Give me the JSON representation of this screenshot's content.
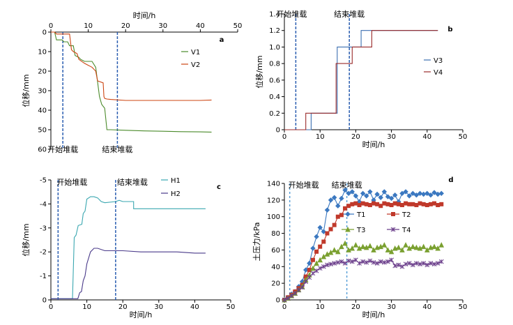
{
  "chart_data": [
    {
      "id": "a",
      "type": "line",
      "panel_label": "a",
      "xlabel": "时间/h",
      "ylabel": "位移/mm",
      "xlim": [
        0,
        50
      ],
      "ylim": [
        0,
        60
      ],
      "y_inverted": true,
      "x_axis_position": "top",
      "xticks": [
        0,
        10,
        20,
        30,
        40,
        50
      ],
      "yticks": [
        0,
        10,
        20,
        30,
        40,
        50,
        60
      ],
      "markers": [
        {
          "x": 3.2,
          "label": "开始堆载"
        },
        {
          "x": 17.8,
          "label": "结束堆载"
        }
      ],
      "series": [
        {
          "name": "V1",
          "color": "#4a8a2a",
          "x": [
            0,
            1,
            1.5,
            3,
            3.5,
            4.5,
            5,
            6,
            6.5,
            7.5,
            8,
            9,
            11,
            12,
            13,
            13.6,
            14,
            14.4,
            15,
            16,
            20,
            25,
            30,
            35,
            40,
            43
          ],
          "y": [
            0,
            0,
            4,
            4,
            5,
            5,
            7,
            7,
            12,
            13,
            14,
            15,
            15,
            18,
            33,
            37,
            38,
            39,
            50,
            50,
            50.3,
            50.6,
            50.8,
            51,
            51.1,
            51.2
          ]
        },
        {
          "name": "V2",
          "color": "#cc4411",
          "x": [
            0,
            1,
            1.5,
            5,
            5.5,
            6,
            7,
            7.5,
            9,
            11,
            12,
            12.5,
            14,
            14.2,
            14.4,
            15,
            16,
            20,
            25,
            30,
            35,
            40,
            43
          ],
          "y": [
            0,
            0,
            1,
            1,
            9,
            10,
            11,
            14,
            16,
            18,
            20,
            25,
            26,
            33,
            34,
            34.3,
            34.5,
            35,
            35,
            35,
            35,
            35,
            34.8
          ]
        }
      ]
    },
    {
      "id": "b",
      "type": "line",
      "panel_label": "b",
      "xlabel": "时间/h",
      "ylabel": "位移/mm",
      "xlim": [
        0,
        50
      ],
      "ylim": [
        0,
        1.4
      ],
      "xticks": [
        0,
        10,
        20,
        30,
        40,
        50
      ],
      "yticks": [
        0,
        0.2,
        0.4,
        0.6,
        0.8,
        1.0,
        1.2,
        1.4
      ],
      "ytick_labels": [
        "0",
        "0.2",
        "0.4",
        "0.6",
        "0.8",
        "1.0",
        "1.2",
        "1.4"
      ],
      "markers": [
        {
          "x": 3.2,
          "label": "开始堆载"
        },
        {
          "x": 18.2,
          "label": "结束堆载"
        }
      ],
      "series": [
        {
          "name": "V3",
          "color": "#3b6fb0",
          "x": [
            0,
            7.5,
            7.5,
            14.8,
            14.8,
            21.5,
            21.5,
            43
          ],
          "y": [
            0,
            0,
            0.2,
            0.2,
            1.0,
            1.0,
            1.2,
            1.2
          ]
        },
        {
          "name": "V4",
          "color": "#9a2a2a",
          "x": [
            0,
            6,
            6,
            14.5,
            14.5,
            19,
            19,
            24.5,
            24.5,
            43
          ],
          "y": [
            0,
            0,
            0.2,
            0.2,
            0.8,
            0.8,
            1.0,
            1.0,
            1.2,
            1.2
          ]
        }
      ]
    },
    {
      "id": "c",
      "type": "line",
      "panel_label": "c",
      "xlabel": "时间/h",
      "ylabel": "位移/mm",
      "xlim": [
        0,
        50
      ],
      "ylim": [
        0,
        -5
      ],
      "xticks": [
        0,
        10,
        20,
        30,
        40,
        50
      ],
      "yticks": [
        0,
        -1,
        -2,
        -3,
        -4,
        -5
      ],
      "markers": [
        {
          "x": 2,
          "label": "开始堆载"
        },
        {
          "x": 18,
          "label": "结束堆载"
        }
      ],
      "series": [
        {
          "name": "H1",
          "color": "#3aa7b0",
          "x": [
            0,
            6,
            6.5,
            7,
            7.6,
            8.6,
            9,
            9.5,
            10,
            11,
            12,
            13,
            14,
            15,
            18,
            19,
            20,
            21,
            22,
            23,
            23,
            25,
            30,
            35,
            40,
            43
          ],
          "y": [
            -0.05,
            -0.05,
            -2.6,
            -2.7,
            -3.1,
            -3.15,
            -3.6,
            -3.7,
            -4.2,
            -4.3,
            -4.3,
            -4.25,
            -4.1,
            -4.05,
            -4.1,
            -4.15,
            -4.1,
            -4.1,
            -4.1,
            -4.1,
            -3.8,
            -3.8,
            -3.8,
            -3.8,
            -3.8,
            -3.8
          ]
        },
        {
          "name": "H2",
          "color": "#4a3a8a",
          "x": [
            0,
            7.5,
            8,
            8.5,
            9,
            9.5,
            10,
            11,
            12,
            13,
            15,
            20,
            25,
            30,
            35,
            40,
            43
          ],
          "y": [
            -0.05,
            -0.05,
            -0.3,
            -0.35,
            -0.8,
            -1.0,
            -1.5,
            -2.0,
            -2.15,
            -2.15,
            -2.05,
            -2.05,
            -2.0,
            -2.0,
            -2.0,
            -1.95,
            -1.95
          ]
        }
      ]
    },
    {
      "id": "d",
      "type": "line",
      "panel_label": "d",
      "xlabel": "时间/h",
      "ylabel": "土压力/kPa",
      "xlim": [
        0,
        50
      ],
      "ylim": [
        0,
        140
      ],
      "xticks": [
        0,
        10,
        20,
        30,
        40,
        50
      ],
      "yticks": [
        0,
        20,
        40,
        60,
        80,
        100,
        120,
        140
      ],
      "markers": [
        {
          "x": 1.5,
          "label": "开始堆载"
        },
        {
          "x": 17.5,
          "label": "结束堆载"
        }
      ],
      "series": [
        {
          "name": "T1",
          "color": "#3b78c0",
          "marker": "diamond",
          "x": [
            0,
            1,
            2,
            3,
            4,
            5,
            6,
            7,
            8,
            9,
            10,
            11,
            12,
            13,
            14,
            15,
            16,
            17,
            18,
            19,
            20,
            21,
            22,
            23,
            24,
            25,
            26,
            27,
            28,
            29,
            30,
            31,
            32,
            33,
            34,
            35,
            36,
            37,
            38,
            39,
            40,
            41,
            42,
            43,
            44
          ],
          "y": [
            0,
            3,
            7,
            10,
            16,
            22,
            36,
            44,
            62,
            76,
            87,
            82,
            108,
            120,
            123,
            113,
            122,
            132,
            128,
            130,
            125,
            118,
            128,
            125,
            130,
            120,
            127,
            123,
            130,
            124,
            122,
            126,
            118,
            128,
            130,
            125,
            128,
            126,
            128,
            127,
            128,
            126,
            129,
            127,
            128
          ]
        },
        {
          "name": "T2",
          "color": "#c0392b",
          "marker": "square",
          "x": [
            0,
            1,
            2,
            3,
            4,
            5,
            6,
            7,
            8,
            9,
            10,
            11,
            12,
            13,
            14,
            15,
            16,
            17,
            18,
            19,
            20,
            21,
            22,
            23,
            24,
            25,
            26,
            27,
            28,
            29,
            30,
            31,
            32,
            33,
            34,
            35,
            36,
            37,
            38,
            39,
            40,
            41,
            42,
            43,
            44
          ],
          "y": [
            0,
            3,
            6,
            10,
            14,
            18,
            28,
            36,
            48,
            58,
            64,
            70,
            80,
            85,
            90,
            100,
            102,
            110,
            113,
            115,
            116,
            114,
            116,
            115,
            114,
            116,
            115,
            113,
            116,
            115,
            114,
            116,
            115,
            114,
            116,
            115,
            115,
            114,
            116,
            115,
            114,
            115,
            116,
            114,
            115
          ]
        },
        {
          "name": "T3",
          "color": "#7aa030",
          "marker": "triangle",
          "x": [
            0,
            1,
            2,
            3,
            4,
            5,
            6,
            7,
            8,
            9,
            10,
            11,
            12,
            13,
            14,
            15,
            16,
            17,
            18,
            19,
            20,
            21,
            22,
            23,
            24,
            25,
            26,
            27,
            28,
            29,
            30,
            31,
            32,
            33,
            34,
            35,
            36,
            37,
            38,
            39,
            40,
            41,
            42,
            43,
            44
          ],
          "y": [
            0,
            2,
            5,
            8,
            12,
            16,
            24,
            30,
            38,
            44,
            48,
            52,
            55,
            57,
            60,
            58,
            64,
            68,
            60,
            62,
            66,
            62,
            64,
            63,
            65,
            60,
            63,
            64,
            66,
            60,
            58,
            62,
            63,
            60,
            66,
            62,
            64,
            63,
            62,
            64,
            60,
            63,
            64,
            62,
            66
          ]
        },
        {
          "name": "T4",
          "color": "#6a3d8a",
          "marker": "cross",
          "x": [
            0,
            1,
            2,
            3,
            4,
            5,
            6,
            7,
            8,
            9,
            10,
            11,
            12,
            13,
            14,
            15,
            16,
            17,
            18,
            19,
            20,
            21,
            22,
            23,
            24,
            25,
            26,
            27,
            28,
            29,
            30,
            31,
            32,
            33,
            34,
            35,
            36,
            37,
            38,
            39,
            40,
            41,
            42,
            43,
            44
          ],
          "y": [
            0,
            2,
            5,
            8,
            12,
            15,
            22,
            27,
            32,
            35,
            38,
            40,
            42,
            43,
            44,
            45,
            46,
            44,
            47,
            46,
            48,
            44,
            46,
            45,
            47,
            45,
            44,
            46,
            45,
            46,
            48,
            41,
            42,
            40,
            43,
            44,
            42,
            44,
            43,
            44,
            42,
            44,
            43,
            44,
            46
          ]
        }
      ]
    }
  ]
}
